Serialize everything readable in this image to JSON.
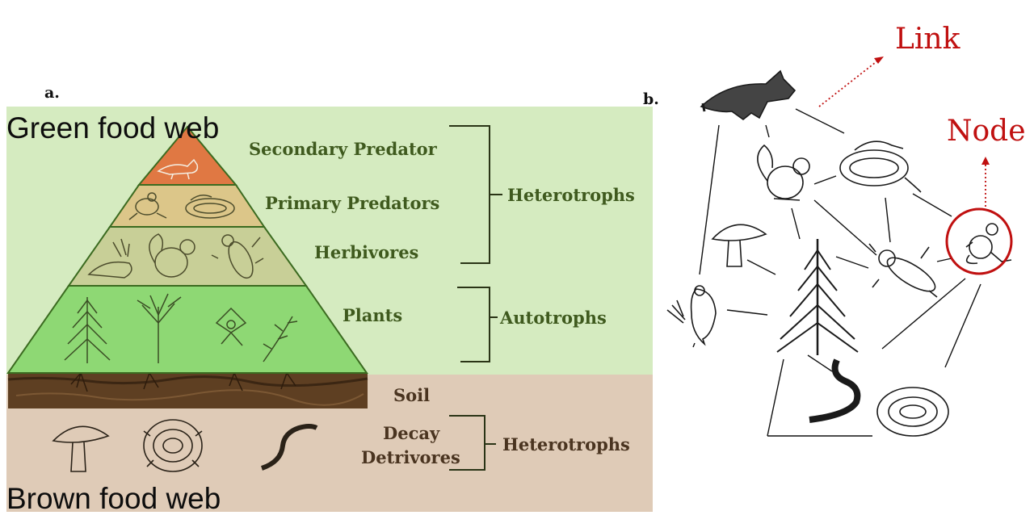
{
  "panel_a": {
    "label": "a.",
    "green_title": "Green food web",
    "brown_title": "Brown food web",
    "levels": {
      "secondary": "Secondary Predator",
      "primary": "Primary Predators",
      "herbivores": "Herbivores",
      "plants": "Plants",
      "soil": "Soil",
      "decay": "Decay",
      "detrivores": "Detrivores"
    },
    "groups": {
      "heterotrophs_upper": "Heterotrophs",
      "autotrophs": "Autotrophs",
      "heterotrophs_lower": "Heterotrophs"
    },
    "colors": {
      "green_bg": "#d5ebc0",
      "brown_bg": "#dfcbb7",
      "apex": "#e07843",
      "primary_band": "#dcc689",
      "herbivore_band": "#c8cf97",
      "plant_band": "#8ed874",
      "soil": "#5e3f22",
      "text_green": "#3f5a1e",
      "text_brown": "#4a3420"
    }
  },
  "panel_b": {
    "label": "b.",
    "link_label": "Link",
    "node_label": "Node",
    "annotation_color": "#c01010"
  }
}
